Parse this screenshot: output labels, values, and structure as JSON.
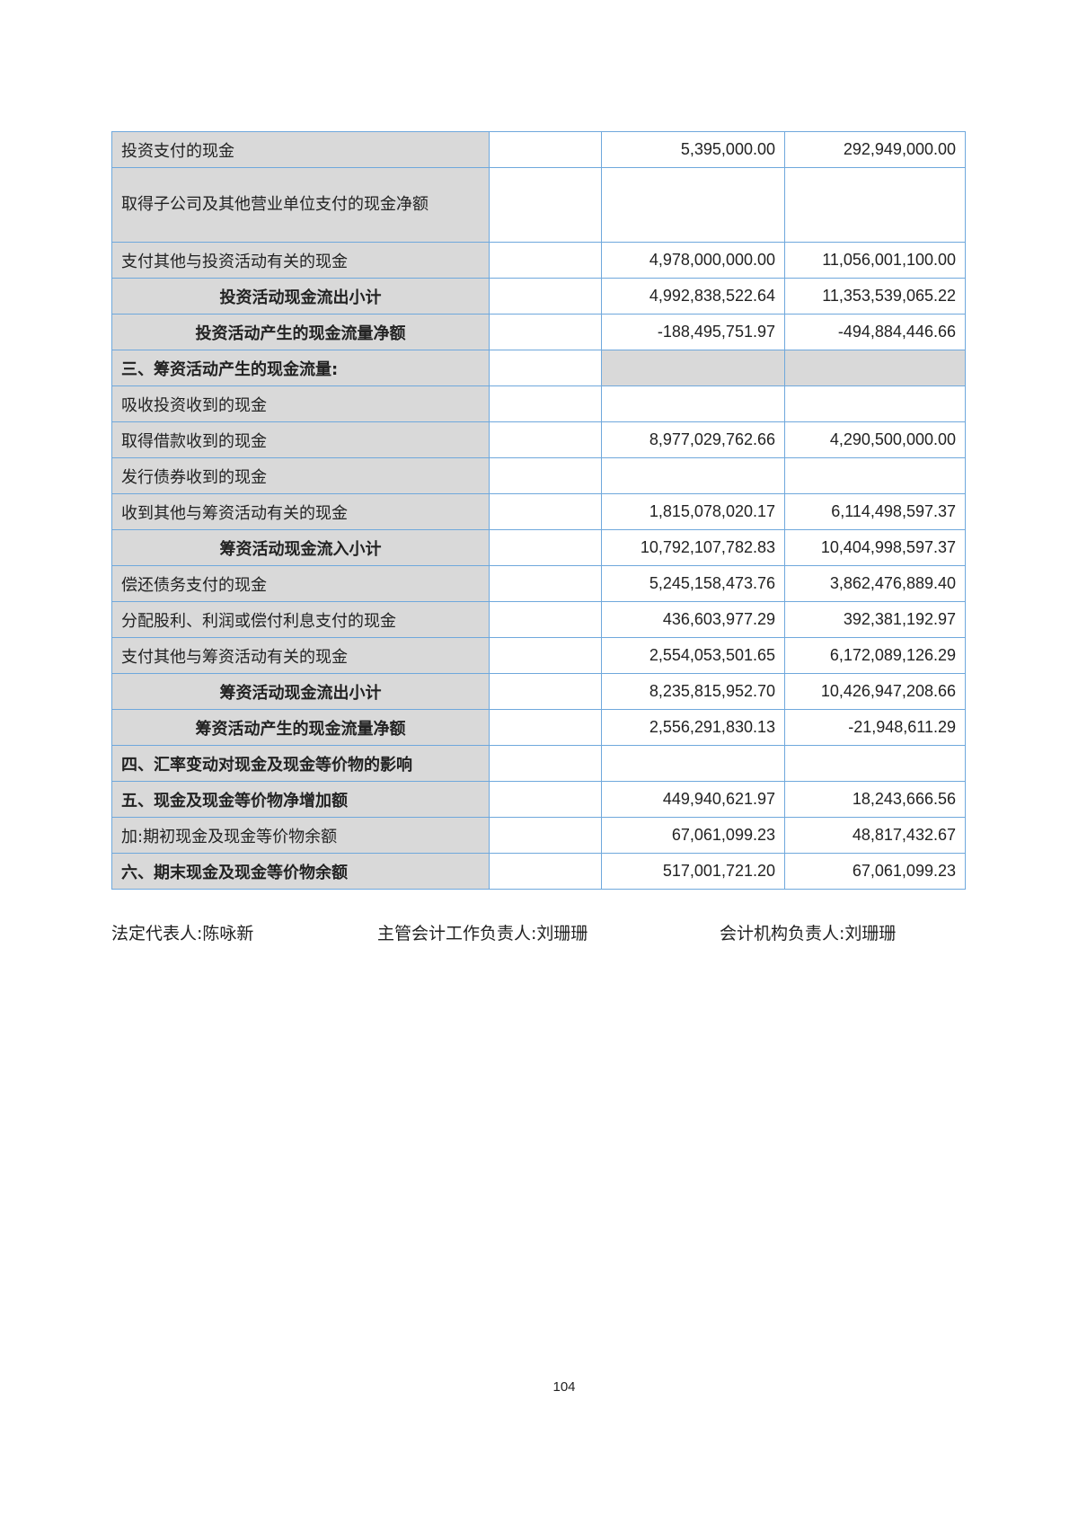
{
  "rows": [
    {
      "label": "投资支付的现金",
      "current": "5,395,000.00",
      "prior": "292,949,000.00",
      "style": "normal"
    },
    {
      "label": "取得子公司及其他营业单位支付的现金净额",
      "current": "",
      "prior": "",
      "style": "tall"
    },
    {
      "label": "支付其他与投资活动有关的现金",
      "current": "4,978,000,000.00",
      "prior": "11,056,001,100.00",
      "style": "normal"
    },
    {
      "label": "投资活动现金流出小计",
      "current": "4,992,838,522.64",
      "prior": "11,353,539,065.22",
      "style": "subtotal"
    },
    {
      "label": "投资活动产生的现金流量净额",
      "current": "-188,495,751.97",
      "prior": "-494,884,446.66",
      "style": "subtotal"
    },
    {
      "label": "三、筹资活动产生的现金流量:",
      "current": "",
      "prior": "",
      "style": "section-gray"
    },
    {
      "label": "吸收投资收到的现金",
      "current": "",
      "prior": "",
      "style": "normal"
    },
    {
      "label": "取得借款收到的现金",
      "current": "8,977,029,762.66",
      "prior": "4,290,500,000.00",
      "style": "normal"
    },
    {
      "label": "发行债券收到的现金",
      "current": "",
      "prior": "",
      "style": "normal"
    },
    {
      "label": "收到其他与筹资活动有关的现金",
      "current": "1,815,078,020.17",
      "prior": "6,114,498,597.37",
      "style": "normal"
    },
    {
      "label": "筹资活动现金流入小计",
      "current": "10,792,107,782.83",
      "prior": "10,404,998,597.37",
      "style": "subtotal"
    },
    {
      "label": "偿还债务支付的现金",
      "current": "5,245,158,473.76",
      "prior": "3,862,476,889.40",
      "style": "normal"
    },
    {
      "label": "分配股利、利润或偿付利息支付的现金",
      "current": "436,603,977.29",
      "prior": "392,381,192.97",
      "style": "normal"
    },
    {
      "label": "支付其他与筹资活动有关的现金",
      "current": "2,554,053,501.65",
      "prior": "6,172,089,126.29",
      "style": "normal"
    },
    {
      "label": "筹资活动现金流出小计",
      "current": "8,235,815,952.70",
      "prior": "10,426,947,208.66",
      "style": "subtotal"
    },
    {
      "label": "筹资活动产生的现金流量净额",
      "current": "2,556,291,830.13",
      "prior": "-21,948,611.29",
      "style": "subtotal"
    },
    {
      "label": "四、汇率变动对现金及现金等价物的影响",
      "current": "",
      "prior": "",
      "style": "section"
    },
    {
      "label": "五、现金及现金等价物净增加额",
      "current": "449,940,621.97",
      "prior": "18,243,666.56",
      "style": "section"
    },
    {
      "label": "加:期初现金及现金等价物余额",
      "current": "67,061,099.23",
      "prior": "48,817,432.67",
      "style": "normal"
    },
    {
      "label": "六、期末现金及现金等价物余额",
      "current": "517,001,721.20",
      "prior": "67,061,099.23",
      "style": "section"
    }
  ],
  "footer": {
    "legal_rep": "法定代表人:陈咏新",
    "accounting_head": "主管会计工作负责人:刘珊珊",
    "accounting_dept_head": "会计机构负责人:刘珊珊"
  },
  "page_number": "104",
  "colors": {
    "border": "#6fa8dc",
    "label_fill": "#d9d9d9"
  }
}
